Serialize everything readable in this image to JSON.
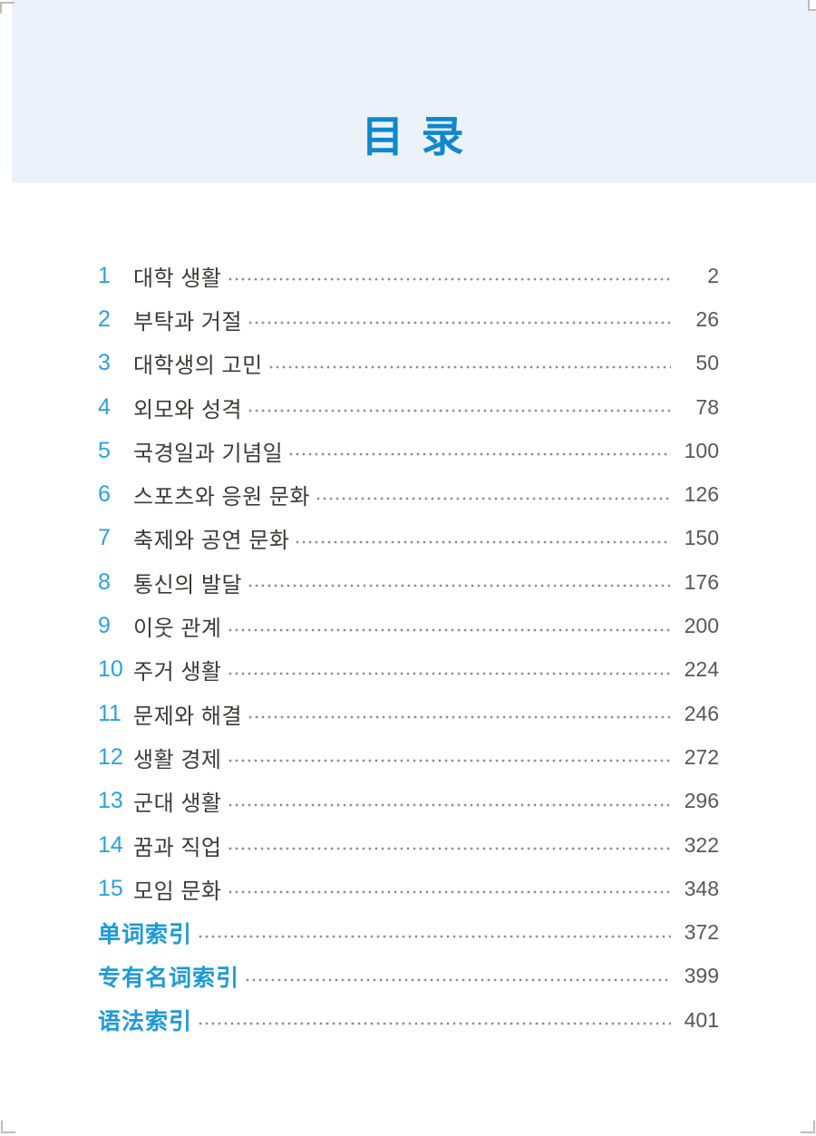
{
  "header": {
    "title": "目 录"
  },
  "toc": {
    "chapters": [
      {
        "num": "1",
        "title": "대학 생활",
        "page": "2"
      },
      {
        "num": "2",
        "title": "부탁과 거절",
        "page": "26"
      },
      {
        "num": "3",
        "title": "대학생의 고민",
        "page": "50"
      },
      {
        "num": "4",
        "title": "외모와 성격",
        "page": "78"
      },
      {
        "num": "5",
        "title": "국경일과 기념일",
        "page": "100"
      },
      {
        "num": "6",
        "title": "스포츠와 응원 문화",
        "page": "126"
      },
      {
        "num": "7",
        "title": "축제와 공연 문화",
        "page": "150"
      },
      {
        "num": "8",
        "title": "통신의 발달",
        "page": "176"
      },
      {
        "num": "9",
        "title": "이웃 관계",
        "page": "200"
      },
      {
        "num": "10",
        "title": "주거 생활",
        "page": "224"
      },
      {
        "num": "11",
        "title": "문제와 해결",
        "page": "246"
      },
      {
        "num": "12",
        "title": "생활 경제",
        "page": "272"
      },
      {
        "num": "13",
        "title": "군대 생활",
        "page": "296"
      },
      {
        "num": "14",
        "title": "꿈과 직업",
        "page": "322"
      },
      {
        "num": "15",
        "title": "모임 문화",
        "page": "348"
      }
    ],
    "indexes": [
      {
        "label": "单词索引",
        "page": "372"
      },
      {
        "label": "专有名词索引",
        "page": "399"
      },
      {
        "label": "语法索引",
        "page": "401"
      }
    ]
  },
  "colors": {
    "header_bg": "#EBF2FA",
    "title_blue": "#0E87CE",
    "number_blue": "#2AA2DE",
    "index_blue": "#1E9AD8",
    "text_dark": "#3E3A39",
    "page_gray": "#595757",
    "dot_gray": "#8D8D8D"
  }
}
